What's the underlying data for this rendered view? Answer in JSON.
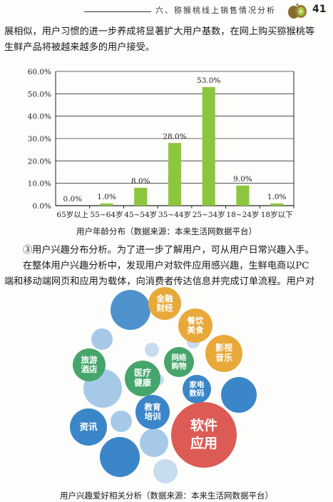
{
  "header": {
    "section_title": "六、猕猴桃线上销售情况分析",
    "page_number": "41"
  },
  "paragraph1": {
    "line1": "展相似，用户习惯的进一步养成将显著扩大用户基数，在网上购买猕猴桃等",
    "line2": "生鲜产品将被越来越多的用户接受。"
  },
  "chart_data": {
    "type": "bar",
    "categories": [
      "65岁以上",
      "55~64岁",
      "45~54岁",
      "35~44岁",
      "25~34岁",
      "18~24岁",
      "18岁以下"
    ],
    "values": [
      0.0,
      1.0,
      8.0,
      28.0,
      53.0,
      9.0,
      1.0
    ],
    "value_labels": [
      "0.0%",
      "1.0%",
      "8.0%",
      "28.0%",
      "53.0%",
      "9.0%",
      "1.0%"
    ],
    "yticks": [
      "0.0%",
      "10.0%",
      "20.0%",
      "30.0%",
      "40.0%",
      "50.0%",
      "60.0%"
    ],
    "ylim": [
      0,
      60
    ],
    "grid": true,
    "bar_color": "#8cc63f"
  },
  "caption1": "用户年龄分布（数据来源：本来生活网数据平台）",
  "paragraph2": "③用户兴趣分布分析。为了进一步了解用户，可从用户日常兴趣入手。",
  "paragraph3": {
    "line1": "在整体用户兴趣分析中，发现用户对软件应用感兴趣，生鲜电商以PC",
    "line2": "端和移动端网页和应用为载体，向消费者传达信息并完成订单流程。用户对"
  },
  "interests": {
    "finance": "金融财经",
    "dining": "餐饮美食",
    "film": "影视音乐",
    "travel": "旅游酒店",
    "online_shopping": "网络购物",
    "medical": "医疗健康",
    "appliance": "家电数码",
    "education": "教育培训",
    "news": "资讯",
    "software": "软件应用"
  },
  "caption2": "用户兴趣爱好相关分析（数据来源：本来生活网数据平台）",
  "colors": {
    "gold": "#e8a93a",
    "green": "#45a56b",
    "blue": "#3a86c8",
    "light_blue": "#a7c9e8",
    "red": "#dc5b55"
  }
}
